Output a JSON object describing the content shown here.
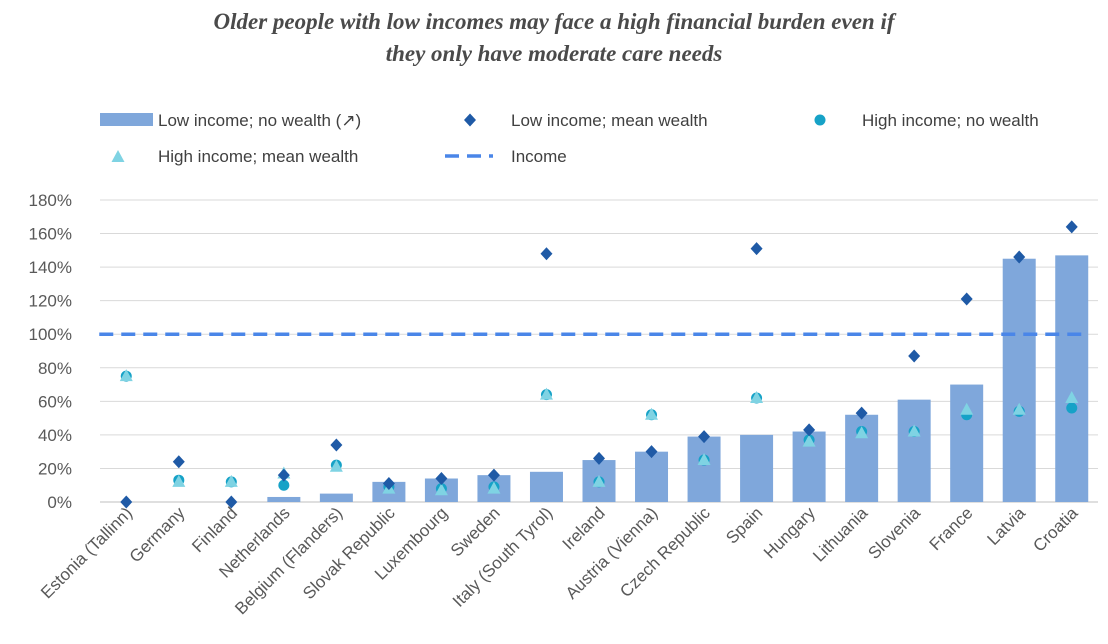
{
  "chart_data": {
    "type": "bar",
    "title_lines": [
      "Older people with low incomes may face a high financial burden even if",
      "they only have moderate care needs"
    ],
    "categories": [
      "Estonia (Tallinn)",
      "Germany",
      "Finland",
      "Netherlands",
      "Belgium (Flanders)",
      "Slovak Republic",
      "Luxembourg",
      "Sweden",
      "Italy (South Tyrol)",
      "Ireland",
      "Austria (Vienna)",
      "Czech Republic",
      "Spain",
      "Hungary",
      "Lithuania",
      "Slovenia",
      "France",
      "Latvia",
      "Croatia"
    ],
    "y_ticks": [
      "0%",
      "20%",
      "40%",
      "60%",
      "80%",
      "100%",
      "120%",
      "140%",
      "160%",
      "180%"
    ],
    "ylim": [
      0,
      180
    ],
    "grid": true,
    "legend_position": "top",
    "series": [
      {
        "name": "Low income; no wealth (↗)",
        "kind": "bar",
        "color": "#7fa7db",
        "values": [
          0,
          0,
          0,
          3,
          5,
          12,
          14,
          16,
          18,
          25,
          30,
          39,
          40,
          42,
          52,
          61,
          70,
          145,
          147
        ]
      },
      {
        "name": "Low income; mean wealth",
        "kind": "diamond",
        "color": "#1f5aa6",
        "values": [
          0,
          24,
          0,
          16,
          34,
          11,
          14,
          16,
          148,
          26,
          30,
          39,
          151,
          43,
          53,
          87,
          121,
          146,
          164
        ]
      },
      {
        "name": "High income; no wealth",
        "kind": "circle",
        "color": "#16a2c7",
        "values": [
          75,
          13,
          12,
          10,
          22,
          9,
          8,
          9,
          64,
          12,
          52,
          25,
          62,
          37,
          42,
          42,
          52,
          54,
          56
        ]
      },
      {
        "name": "High income; mean wealth",
        "kind": "triangle",
        "color": "#7fd3e3",
        "values": [
          75,
          12,
          12,
          17,
          21,
          8,
          7,
          8,
          64,
          12,
          52,
          25,
          62,
          36,
          41,
          42,
          55,
          55,
          62
        ]
      },
      {
        "name": "Income",
        "kind": "dashed-line",
        "color": "#4a86e8",
        "value": 100
      }
    ]
  }
}
